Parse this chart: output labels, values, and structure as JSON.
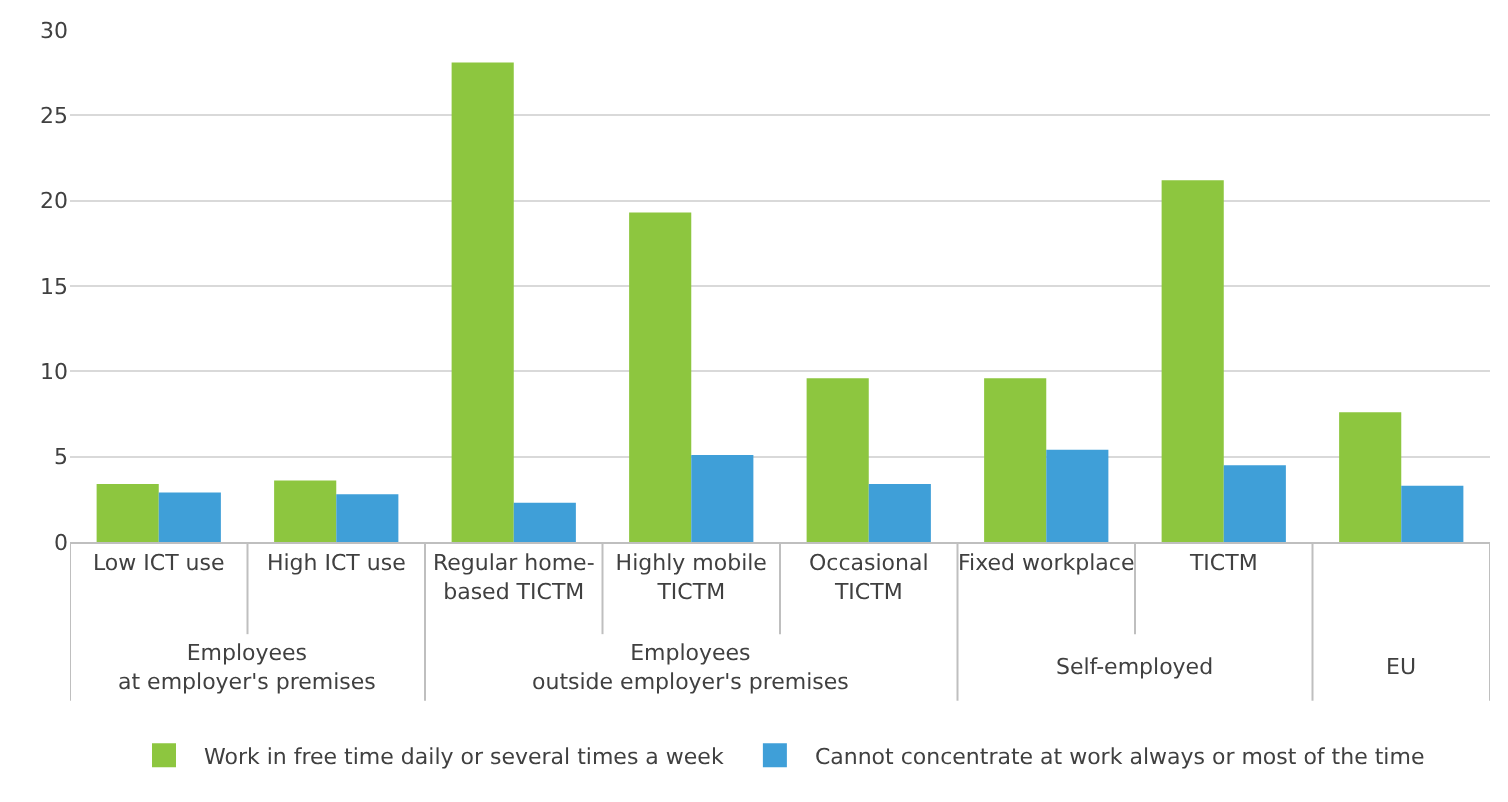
{
  "chart_data": {
    "type": "bar",
    "categories": [
      "Low ICT use",
      "High ICT use",
      "Regular home-\nbased TICTM",
      "Highly mobile\nTICTM",
      "Occasional\nTICTM",
      "Fixed workplace",
      "TICTM",
      null
    ],
    "series": [
      {
        "name": "Work in free time daily or several times a week",
        "color": "#8dc63f",
        "values": [
          3.4,
          3.6,
          28.1,
          19.3,
          9.6,
          9.6,
          21.2,
          7.6
        ]
      },
      {
        "name": "Cannot concentrate at work always or most of the time",
        "color": "#3f9fd8",
        "values": [
          2.9,
          2.8,
          2.3,
          5.1,
          3.4,
          5.4,
          4.5,
          3.3
        ]
      }
    ],
    "annotations": [
      "Employees\nat employer's premises",
      "Employees\noutside employer's premises",
      "Self-employed",
      "EU"
    ],
    "ylim": [
      0,
      30
    ],
    "yticks": [
      0,
      5,
      10,
      15,
      20,
      25,
      30
    ],
    "grid": "y",
    "legend": "bottom"
  }
}
